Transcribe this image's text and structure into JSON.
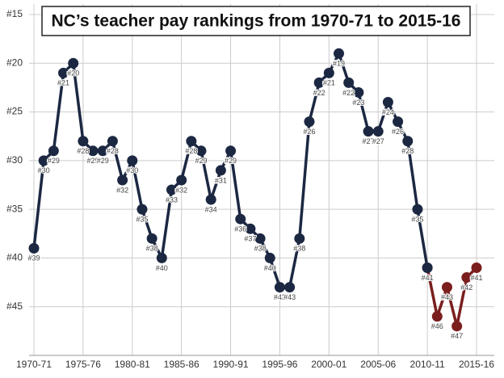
{
  "chart_data": {
    "type": "line",
    "title": "NC’s teacher pay rankings from 1970-71 to 2015-16",
    "categories": [
      "1970-71",
      null,
      null,
      null,
      null,
      "1975-76",
      null,
      null,
      null,
      null,
      "1980-81",
      null,
      null,
      null,
      null,
      "1985-86",
      null,
      null,
      null,
      null,
      "1990-91",
      null,
      null,
      null,
      null,
      "1995-96",
      null,
      null,
      null,
      null,
      "2000-01",
      null,
      null,
      null,
      null,
      "2005-06",
      null,
      null,
      null,
      null,
      "2010-11",
      null,
      null,
      null,
      null,
      "2015-16"
    ],
    "series": [
      {
        "color": "#1c2842",
        "values": [
          39,
          30,
          29,
          21,
          20,
          28,
          29,
          29,
          28,
          32,
          30,
          35,
          38,
          40,
          33,
          32,
          28,
          29,
          34,
          31,
          29,
          36,
          37,
          38,
          40,
          43,
          43,
          38,
          26,
          22,
          21,
          19,
          22,
          23,
          27,
          27,
          24,
          26,
          28,
          35,
          41,
          null,
          null,
          null,
          null,
          null
        ],
        "value_labels": [
          "#39",
          "#30",
          "#29",
          "#21",
          "#20",
          "#28",
          "#29",
          "#29",
          "#28",
          "#32",
          "#30",
          "#35",
          "#38",
          "#40",
          "#33",
          "#32",
          "#28",
          "#29",
          "#34",
          "#31",
          "#29",
          "#36",
          "#37",
          "#38",
          "#40",
          "#43",
          "#43",
          "#38",
          "#26",
          "#22",
          "#21",
          "#19",
          "#22",
          "#23",
          "#27",
          "#27",
          "#24",
          "#26",
          "#28",
          "#35",
          "#41",
          null,
          null,
          null,
          null,
          null
        ]
      },
      {
        "color": "#7a1e1e",
        "values": [
          null,
          null,
          null,
          null,
          null,
          null,
          null,
          null,
          null,
          null,
          null,
          null,
          null,
          null,
          null,
          null,
          null,
          null,
          null,
          null,
          null,
          null,
          null,
          null,
          null,
          null,
          null,
          null,
          null,
          null,
          null,
          null,
          null,
          null,
          null,
          null,
          null,
          null,
          null,
          null,
          41,
          46,
          43,
          47,
          42,
          41
        ],
        "value_labels": [
          null,
          null,
          null,
          null,
          null,
          null,
          null,
          null,
          null,
          null,
          null,
          null,
          null,
          null,
          null,
          null,
          null,
          null,
          null,
          null,
          null,
          null,
          null,
          null,
          null,
          null,
          null,
          null,
          null,
          null,
          null,
          null,
          null,
          null,
          null,
          null,
          null,
          null,
          null,
          null,
          null,
          "#46",
          "#43",
          "#47",
          "#42",
          "#41"
        ]
      }
    ],
    "ylim": [
      15,
      50
    ],
    "y_inverted": true,
    "yticks": [
      {
        "value": 15,
        "label": "#15"
      },
      {
        "value": 20,
        "label": "#20"
      },
      {
        "value": 25,
        "label": "#25"
      },
      {
        "value": 30,
        "label": "#30"
      },
      {
        "value": 35,
        "label": "#35"
      },
      {
        "value": 40,
        "label": "#40"
      },
      {
        "value": 45,
        "label": "#45"
      }
    ],
    "grid": true
  }
}
